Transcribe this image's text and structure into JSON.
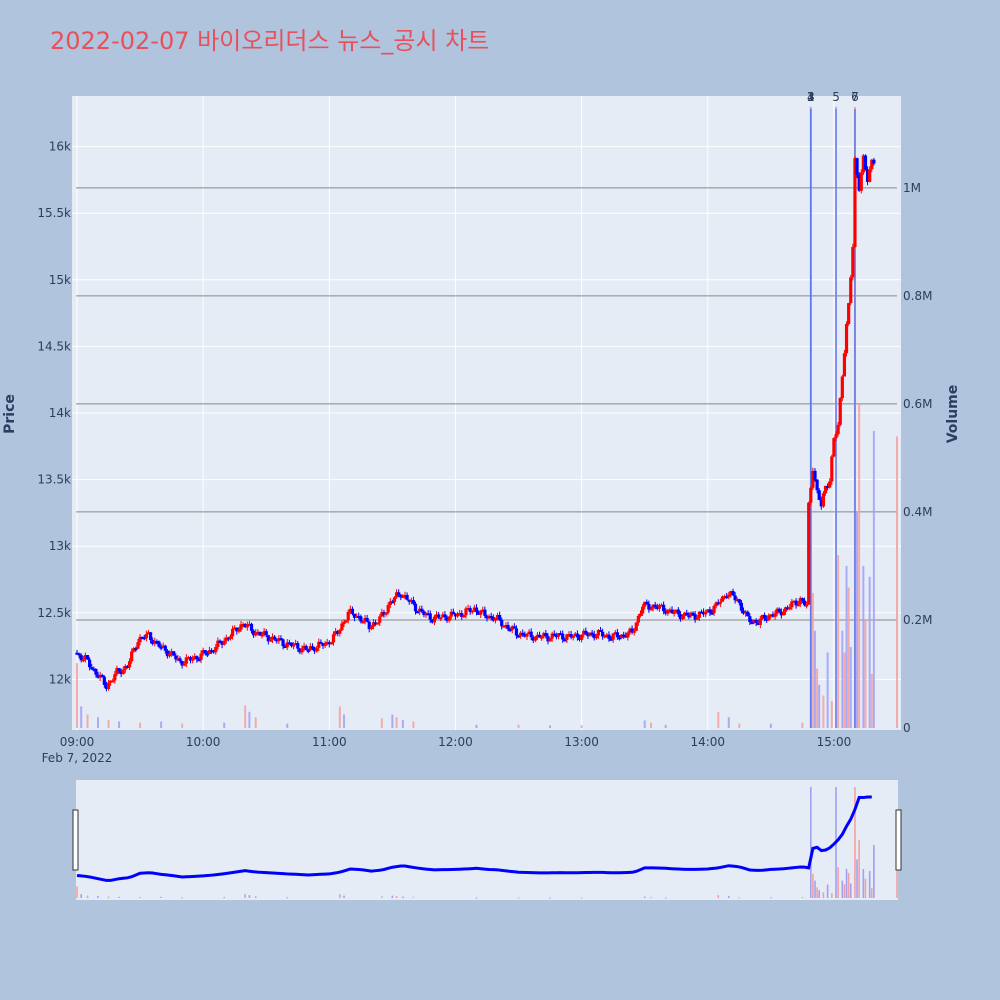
{
  "colors": {
    "page_bg": "#b0c4de",
    "plot_bg": "#e5ecf6",
    "title": "#e8505b",
    "up": "#ff0000",
    "down": "#0000ff",
    "volume_up": "#f4a0a0",
    "volume_down": "#a0a0f4",
    "event_line": "#5a78f0",
    "volume_grid": "#888888",
    "text": "#2a3f5f"
  },
  "chart_data": {
    "type": "candlestick",
    "title": "2022-02-07 바이오리더스 뉴스_공시 차트",
    "y_label": "Price",
    "y2_label": "Volume",
    "x_ticks": [
      "09:00",
      "10:00",
      "11:00",
      "12:00",
      "13:00",
      "14:00",
      "15:00"
    ],
    "x_date_label": "Feb 7, 2022",
    "x_range": [
      "09:00",
      "15:30"
    ],
    "y_ticks": [
      "12k",
      "12.5k",
      "13k",
      "13.5k",
      "14k",
      "14.5k",
      "15k",
      "15.5k",
      "16k"
    ],
    "y_range": [
      11620,
      16380
    ],
    "y2_ticks": [
      "0",
      "0.2M",
      "0.4M",
      "0.6M",
      "0.8M",
      "1M"
    ],
    "y2_range": [
      0,
      1170000
    ],
    "events": [
      {
        "label": "1",
        "time": "14:49"
      },
      {
        "label": "2",
        "time": "14:49"
      },
      {
        "label": "3",
        "time": "14:49"
      },
      {
        "label": "4",
        "time": "14:49"
      },
      {
        "label": "5",
        "time": "15:01"
      },
      {
        "label": "6",
        "time": "15:10"
      },
      {
        "label": "7",
        "time": "15:10"
      }
    ],
    "price_path": [
      [
        "09:00",
        12200
      ],
      [
        "09:05",
        12150
      ],
      [
        "09:10",
        12050
      ],
      [
        "09:15",
        11950
      ],
      [
        "09:20",
        12050
      ],
      [
        "09:25",
        12100
      ],
      [
        "09:30",
        12300
      ],
      [
        "09:35",
        12330
      ],
      [
        "09:40",
        12250
      ],
      [
        "09:45",
        12200
      ],
      [
        "09:50",
        12130
      ],
      [
        "09:55",
        12150
      ],
      [
        "10:00",
        12180
      ],
      [
        "10:05",
        12220
      ],
      [
        "10:10",
        12280
      ],
      [
        "10:15",
        12350
      ],
      [
        "10:20",
        12420
      ],
      [
        "10:25",
        12360
      ],
      [
        "10:30",
        12330
      ],
      [
        "10:35",
        12300
      ],
      [
        "10:40",
        12270
      ],
      [
        "10:45",
        12250
      ],
      [
        "10:50",
        12220
      ],
      [
        "10:55",
        12250
      ],
      [
        "11:00",
        12270
      ],
      [
        "11:05",
        12350
      ],
      [
        "11:10",
        12500
      ],
      [
        "11:15",
        12470
      ],
      [
        "11:20",
        12400
      ],
      [
        "11:25",
        12450
      ],
      [
        "11:30",
        12580
      ],
      [
        "11:35",
        12650
      ],
      [
        "11:40",
        12570
      ],
      [
        "11:45",
        12500
      ],
      [
        "11:50",
        12460
      ],
      [
        "11:55",
        12470
      ],
      [
        "12:00",
        12480
      ],
      [
        "12:05",
        12500
      ],
      [
        "12:10",
        12530
      ],
      [
        "12:15",
        12480
      ],
      [
        "12:20",
        12460
      ],
      [
        "12:25",
        12400
      ],
      [
        "12:30",
        12350
      ],
      [
        "12:35",
        12330
      ],
      [
        "12:40",
        12320
      ],
      [
        "12:45",
        12320
      ],
      [
        "12:50",
        12330
      ],
      [
        "12:55",
        12320
      ],
      [
        "13:00",
        12330
      ],
      [
        "13:05",
        12340
      ],
      [
        "13:10",
        12340
      ],
      [
        "13:15",
        12320
      ],
      [
        "13:20",
        12330
      ],
      [
        "13:25",
        12350
      ],
      [
        "13:30",
        12550
      ],
      [
        "13:35",
        12550
      ],
      [
        "13:40",
        12530
      ],
      [
        "13:45",
        12500
      ],
      [
        "13:50",
        12480
      ],
      [
        "13:55",
        12480
      ],
      [
        "14:00",
        12500
      ],
      [
        "14:05",
        12550
      ],
      [
        "14:10",
        12650
      ],
      [
        "14:15",
        12600
      ],
      [
        "14:20",
        12450
      ],
      [
        "14:25",
        12430
      ],
      [
        "14:30",
        12480
      ],
      [
        "14:35",
        12500
      ],
      [
        "14:40",
        12550
      ],
      [
        "14:45",
        12600
      ],
      [
        "14:48",
        12550
      ],
      [
        "14:49",
        13300
      ],
      [
        "14:51",
        13600
      ],
      [
        "14:53",
        13400
      ],
      [
        "14:55",
        13300
      ],
      [
        "14:57",
        13450
      ],
      [
        "14:59",
        13500
      ],
      [
        "15:01",
        13800
      ],
      [
        "15:03",
        13900
      ],
      [
        "15:05",
        14300
      ],
      [
        "15:07",
        14650
      ],
      [
        "15:08",
        14800
      ],
      [
        "15:10",
        15250
      ],
      [
        "15:11",
        15900
      ],
      [
        "15:13",
        15700
      ],
      [
        "15:15",
        15900
      ],
      [
        "15:17",
        15750
      ],
      [
        "15:19",
        15900
      ]
    ],
    "volume_bars": [
      {
        "t": "09:00",
        "v": 120000
      },
      {
        "t": "09:02",
        "v": 40000
      },
      {
        "t": "09:05",
        "v": 25000
      },
      {
        "t": "09:10",
        "v": 20000
      },
      {
        "t": "09:15",
        "v": 15000
      },
      {
        "t": "09:20",
        "v": 12000
      },
      {
        "t": "09:30",
        "v": 10000
      },
      {
        "t": "09:40",
        "v": 12000
      },
      {
        "t": "09:50",
        "v": 8000
      },
      {
        "t": "10:10",
        "v": 10000
      },
      {
        "t": "10:20",
        "v": 42000
      },
      {
        "t": "10:22",
        "v": 30000
      },
      {
        "t": "10:25",
        "v": 20000
      },
      {
        "t": "10:40",
        "v": 8000
      },
      {
        "t": "11:05",
        "v": 40000
      },
      {
        "t": "11:07",
        "v": 25000
      },
      {
        "t": "11:25",
        "v": 18000
      },
      {
        "t": "11:30",
        "v": 25000
      },
      {
        "t": "11:32",
        "v": 20000
      },
      {
        "t": "11:35",
        "v": 15000
      },
      {
        "t": "11:40",
        "v": 12000
      },
      {
        "t": "12:10",
        "v": 6000
      },
      {
        "t": "12:30",
        "v": 6000
      },
      {
        "t": "12:45",
        "v": 5000
      },
      {
        "t": "13:00",
        "v": 5000
      },
      {
        "t": "13:30",
        "v": 14000
      },
      {
        "t": "13:33",
        "v": 10000
      },
      {
        "t": "13:40",
        "v": 6000
      },
      {
        "t": "14:05",
        "v": 30000
      },
      {
        "t": "14:10",
        "v": 20000
      },
      {
        "t": "14:15",
        "v": 8000
      },
      {
        "t": "14:30",
        "v": 8000
      },
      {
        "t": "14:45",
        "v": 10000
      },
      {
        "t": "14:49",
        "v": 1150000
      },
      {
        "t": "14:50",
        "v": 250000
      },
      {
        "t": "14:51",
        "v": 180000
      },
      {
        "t": "14:52",
        "v": 110000
      },
      {
        "t": "14:53",
        "v": 80000
      },
      {
        "t": "14:55",
        "v": 60000
      },
      {
        "t": "14:57",
        "v": 140000
      },
      {
        "t": "14:59",
        "v": 50000
      },
      {
        "t": "15:01",
        "v": 1150000
      },
      {
        "t": "15:02",
        "v": 320000
      },
      {
        "t": "15:04",
        "v": 180000
      },
      {
        "t": "15:05",
        "v": 140000
      },
      {
        "t": "15:06",
        "v": 300000
      },
      {
        "t": "15:07",
        "v": 260000
      },
      {
        "t": "15:08",
        "v": 150000
      },
      {
        "t": "15:10",
        "v": 1150000
      },
      {
        "t": "15:11",
        "v": 400000
      },
      {
        "t": "15:12",
        "v": 600000
      },
      {
        "t": "15:14",
        "v": 300000
      },
      {
        "t": "15:15",
        "v": 200000
      },
      {
        "t": "15:17",
        "v": 280000
      },
      {
        "t": "15:18",
        "v": 100000
      },
      {
        "t": "15:19",
        "v": 550000
      },
      {
        "t": "15:30",
        "v": 540000
      }
    ]
  }
}
